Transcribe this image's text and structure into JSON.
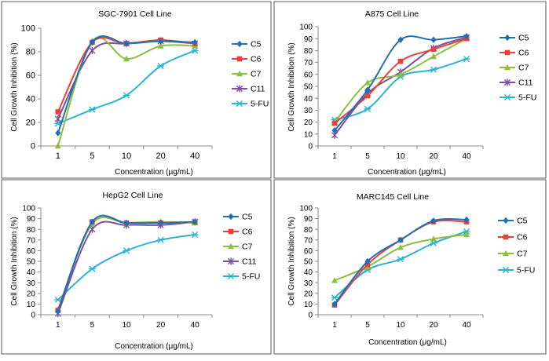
{
  "colors": {
    "C5": "#1f6fb5",
    "C6": "#e8413c",
    "C7": "#8cbf3f",
    "C11": "#7a51a1",
    "5-FU": "#2bb3d6",
    "frame": "#5a5a5a",
    "axis": "#888888"
  },
  "chart_data": [
    {
      "type": "line",
      "title": "SGC-7901 Cell Line",
      "xlabel": "Concentration (μg/mL)",
      "ylabel": "Cell Growth Inhibition (%)",
      "categories": [
        "1",
        "5",
        "10",
        "20",
        "40"
      ],
      "ylim": [
        0,
        100
      ],
      "yticks": [
        0,
        20,
        40,
        60,
        80,
        100
      ],
      "legend_position": "right",
      "series": [
        {
          "name": "C5",
          "marker": "diamond",
          "values": [
            11,
            88,
            87,
            89,
            88
          ]
        },
        {
          "name": "C6",
          "marker": "square",
          "values": [
            29,
            88,
            87,
            90,
            87
          ]
        },
        {
          "name": "C7",
          "marker": "triangle",
          "values": [
            0,
            89,
            74,
            85,
            85
          ]
        },
        {
          "name": "C11",
          "marker": "star",
          "values": [
            23,
            81,
            87,
            89,
            87
          ]
        },
        {
          "name": "5-FU",
          "marker": "asterisk",
          "values": [
            19,
            31,
            43,
            68,
            81
          ]
        }
      ]
    },
    {
      "type": "line",
      "title": "A875 Cell Line",
      "xlabel": "Concentration (μg/mL)",
      "ylabel": "Cell Growth Inhibition (%)",
      "categories": [
        "1",
        "5",
        "10",
        "20",
        "40"
      ],
      "ylim": [
        0,
        100
      ],
      "yticks": [
        0,
        10,
        20,
        30,
        40,
        50,
        60,
        70,
        80,
        90,
        100
      ],
      "legend_position": "right",
      "series": [
        {
          "name": "C5",
          "marker": "diamond",
          "values": [
            13,
            47,
            89,
            89,
            92
          ]
        },
        {
          "name": "C6",
          "marker": "square",
          "values": [
            19,
            42,
            71,
            81,
            90
          ]
        },
        {
          "name": "C7",
          "marker": "triangle",
          "values": [
            20,
            53,
            60,
            75,
            90
          ]
        },
        {
          "name": "C11",
          "marker": "star",
          "values": [
            9,
            44,
            62,
            82,
            91
          ]
        },
        {
          "name": "5-FU",
          "marker": "asterisk",
          "values": [
            22,
            31,
            58,
            64,
            73
          ]
        }
      ]
    },
    {
      "type": "line",
      "title": "HepG2 Cell Line",
      "xlabel": "Concentration (μg/mL)",
      "ylabel": "Cell Growth Inhibition (%)",
      "categories": [
        "1",
        "5",
        "10",
        "20",
        "40"
      ],
      "ylim": [
        0,
        100
      ],
      "yticks": [
        0,
        10,
        20,
        30,
        40,
        50,
        60,
        70,
        80,
        90,
        100
      ],
      "legend_position": "right",
      "series": [
        {
          "name": "C5",
          "marker": "diamond",
          "values": [
            3,
            87,
            86,
            86,
            87
          ]
        },
        {
          "name": "C6",
          "marker": "square",
          "values": [
            4,
            87,
            86,
            86,
            87
          ]
        },
        {
          "name": "C7",
          "marker": "triangle",
          "values": [
            5,
            85,
            86,
            87,
            86
          ]
        },
        {
          "name": "C11",
          "marker": "star",
          "values": [
            1,
            80,
            84,
            84,
            87
          ]
        },
        {
          "name": "5-FU",
          "marker": "asterisk",
          "values": [
            14,
            43,
            60,
            70,
            75
          ]
        }
      ]
    },
    {
      "type": "line",
      "title": "MARC145 Cell Line",
      "xlabel": "Concentration (μg/mL)",
      "ylabel": "Cell Growth Inhibition (%)",
      "categories": [
        "1",
        "5",
        "10",
        "20",
        "40"
      ],
      "ylim": [
        0,
        100
      ],
      "yticks": [
        0,
        10,
        20,
        30,
        40,
        50,
        60,
        70,
        80,
        90,
        100
      ],
      "legend_position": "right",
      "series": [
        {
          "name": "C5",
          "marker": "diamond",
          "values": [
            10,
            50,
            70,
            88,
            89
          ]
        },
        {
          "name": "C6",
          "marker": "square",
          "values": [
            9,
            47,
            70,
            87,
            87
          ]
        },
        {
          "name": "C7",
          "marker": "triangle",
          "values": [
            32,
            45,
            63,
            71,
            75
          ]
        },
        {
          "name": "5-FU",
          "marker": "asterisk",
          "values": [
            16,
            42,
            52,
            67,
            78
          ]
        }
      ]
    }
  ]
}
